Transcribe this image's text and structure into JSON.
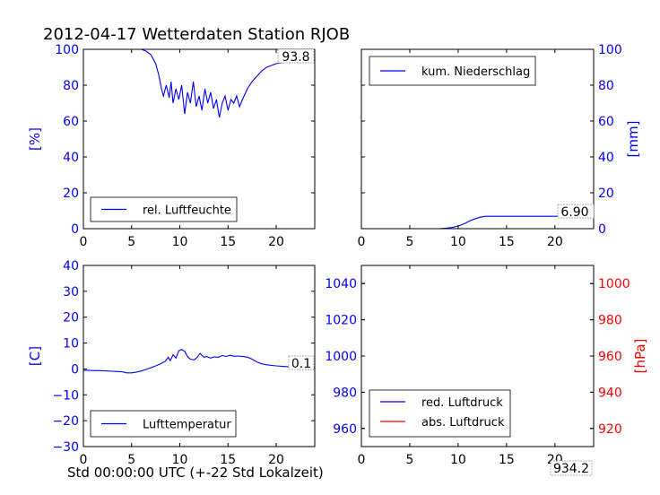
{
  "title": "2012-04-17 Wetterdaten Station RJOB",
  "xlabel": "Std 00:00:00 UTC (+-22 Std Lokalzeit)",
  "colors": {
    "primary": "#0000ff",
    "secondary": "#ff0000",
    "axis": "#000000"
  },
  "chart_data": [
    {
      "type": "line",
      "panel": "top-left",
      "ylabel": "[%]",
      "xlim": [
        0,
        24
      ],
      "ylim": [
        0,
        100
      ],
      "xticks": [
        "0",
        "5",
        "10",
        "15",
        "20"
      ],
      "yticks": [
        "0",
        "20",
        "40",
        "60",
        "80",
        "100"
      ],
      "ytick_color": "#0000ff",
      "legend": "bottom-left",
      "last_value": "93.8",
      "series": [
        {
          "name": "rel. Luftfeuchte",
          "color": "#0000ff",
          "x": [
            0,
            1,
            2,
            3,
            4,
            5,
            6,
            6.5,
            7,
            7.5,
            7.8,
            8.1,
            8.3,
            8.6,
            8.9,
            9.1,
            9.3,
            9.6,
            9.9,
            10.2,
            10.5,
            10.8,
            11.1,
            11.4,
            11.7,
            12.0,
            12.3,
            12.6,
            12.9,
            13.2,
            13.5,
            13.8,
            14.1,
            14.4,
            14.7,
            15.0,
            15.3,
            15.6,
            15.9,
            16.2,
            16.5,
            17.0,
            17.5,
            18.0,
            18.5,
            19.0,
            19.5,
            20.0,
            21.0,
            22.0,
            23.0,
            24.0
          ],
          "y": [
            100,
            100,
            100,
            100,
            100,
            100,
            100,
            99,
            97,
            92,
            86,
            78,
            74,
            80,
            73,
            82,
            70,
            78,
            72,
            80,
            64,
            76,
            70,
            82,
            68,
            74,
            66,
            78,
            70,
            76,
            67,
            72,
            62,
            70,
            74,
            66,
            72,
            70,
            74,
            68,
            72,
            78,
            82,
            85,
            88,
            90,
            91,
            92,
            93,
            93.5,
            93.8,
            93.8
          ]
        }
      ]
    },
    {
      "type": "line",
      "panel": "top-right",
      "ylabel": "[mm]",
      "xlim": [
        0,
        24
      ],
      "ylim": [
        0,
        100
      ],
      "xticks": [
        "0",
        "5",
        "10",
        "15",
        "20"
      ],
      "yticks": [
        "0",
        "20",
        "40",
        "60",
        "80",
        "100"
      ],
      "ytick_color": "#0000ff",
      "legend": "top-left",
      "last_value": "6.90",
      "series": [
        {
          "name": "kum. Niederschlag",
          "color": "#0000ff",
          "x": [
            0,
            8,
            8.8,
            9.5,
            10.2,
            10.8,
            11.3,
            11.8,
            12.3,
            12.8,
            14,
            18,
            22,
            24
          ],
          "y": [
            0,
            0,
            0.3,
            0.8,
            1.8,
            3.2,
            4.6,
            5.6,
            6.4,
            6.9,
            6.9,
            6.9,
            6.9,
            6.9
          ]
        }
      ]
    },
    {
      "type": "line",
      "panel": "bottom-left",
      "ylabel": "[C]",
      "xlim": [
        0,
        24
      ],
      "ylim": [
        -30,
        40
      ],
      "xticks": [
        "0",
        "5",
        "10",
        "15",
        "20"
      ],
      "yticks": [
        "−30",
        "−20",
        "−10",
        "0",
        "10",
        "20",
        "30",
        "40"
      ],
      "ytick_color": "#0000ff",
      "legend": "bottom-left",
      "last_value": "0.1",
      "series": [
        {
          "name": "Lufttemperatur",
          "color": "#0000ff",
          "x": [
            0,
            1,
            2,
            3,
            4,
            4.5,
            5,
            5.5,
            6,
            6.5,
            7,
            7.5,
            8,
            8.5,
            8.8,
            9.0,
            9.3,
            9.6,
            9.9,
            10.2,
            10.5,
            10.8,
            11.1,
            11.5,
            11.8,
            12.1,
            12.5,
            12.8,
            13.2,
            13.6,
            14.0,
            14.4,
            14.8,
            15.2,
            15.6,
            16.0,
            16.5,
            17.0,
            17.5,
            18.0,
            18.5,
            19.0,
            20.0,
            21.0,
            22.0,
            23.0,
            24.0
          ],
          "y": [
            -0.5,
            -0.6,
            -0.7,
            -0.9,
            -1.1,
            -1.5,
            -1.5,
            -1.2,
            -0.8,
            -0.2,
            0.5,
            1.2,
            2.0,
            3.0,
            4.5,
            3.2,
            5.5,
            4.2,
            7.0,
            7.5,
            6.8,
            4.8,
            3.8,
            3.5,
            4.5,
            6.0,
            4.5,
            4.8,
            4.2,
            4.7,
            4.5,
            5.2,
            4.8,
            5.3,
            4.9,
            5.0,
            4.8,
            4.6,
            3.8,
            2.7,
            2.0,
            1.6,
            1.2,
            0.9,
            0.6,
            0.3,
            0.1
          ]
        }
      ]
    },
    {
      "type": "line",
      "panel": "bottom-right",
      "ylabel": "[hPa]",
      "xlim": [
        0,
        24
      ],
      "ylim_left": [
        950,
        1050
      ],
      "ylim_right": [
        910,
        1010
      ],
      "xticks": [
        "0",
        "5",
        "10",
        "15",
        "20"
      ],
      "yticks_left": [
        "960",
        "980",
        "1000",
        "1020",
        "1040"
      ],
      "yticks_right": [
        "920",
        "940",
        "960",
        "980",
        "1000"
      ],
      "ytick_color_left": "#0000ff",
      "ytick_color_right": "#ff0000",
      "legend": "bottom-left",
      "last_value": "934.2",
      "series": [
        {
          "name": "red. Luftdruck",
          "color": "#0000ff",
          "x": [],
          "y": []
        },
        {
          "name": "abs. Luftdruck",
          "color": "#ff0000",
          "x": [],
          "y": []
        }
      ]
    }
  ]
}
